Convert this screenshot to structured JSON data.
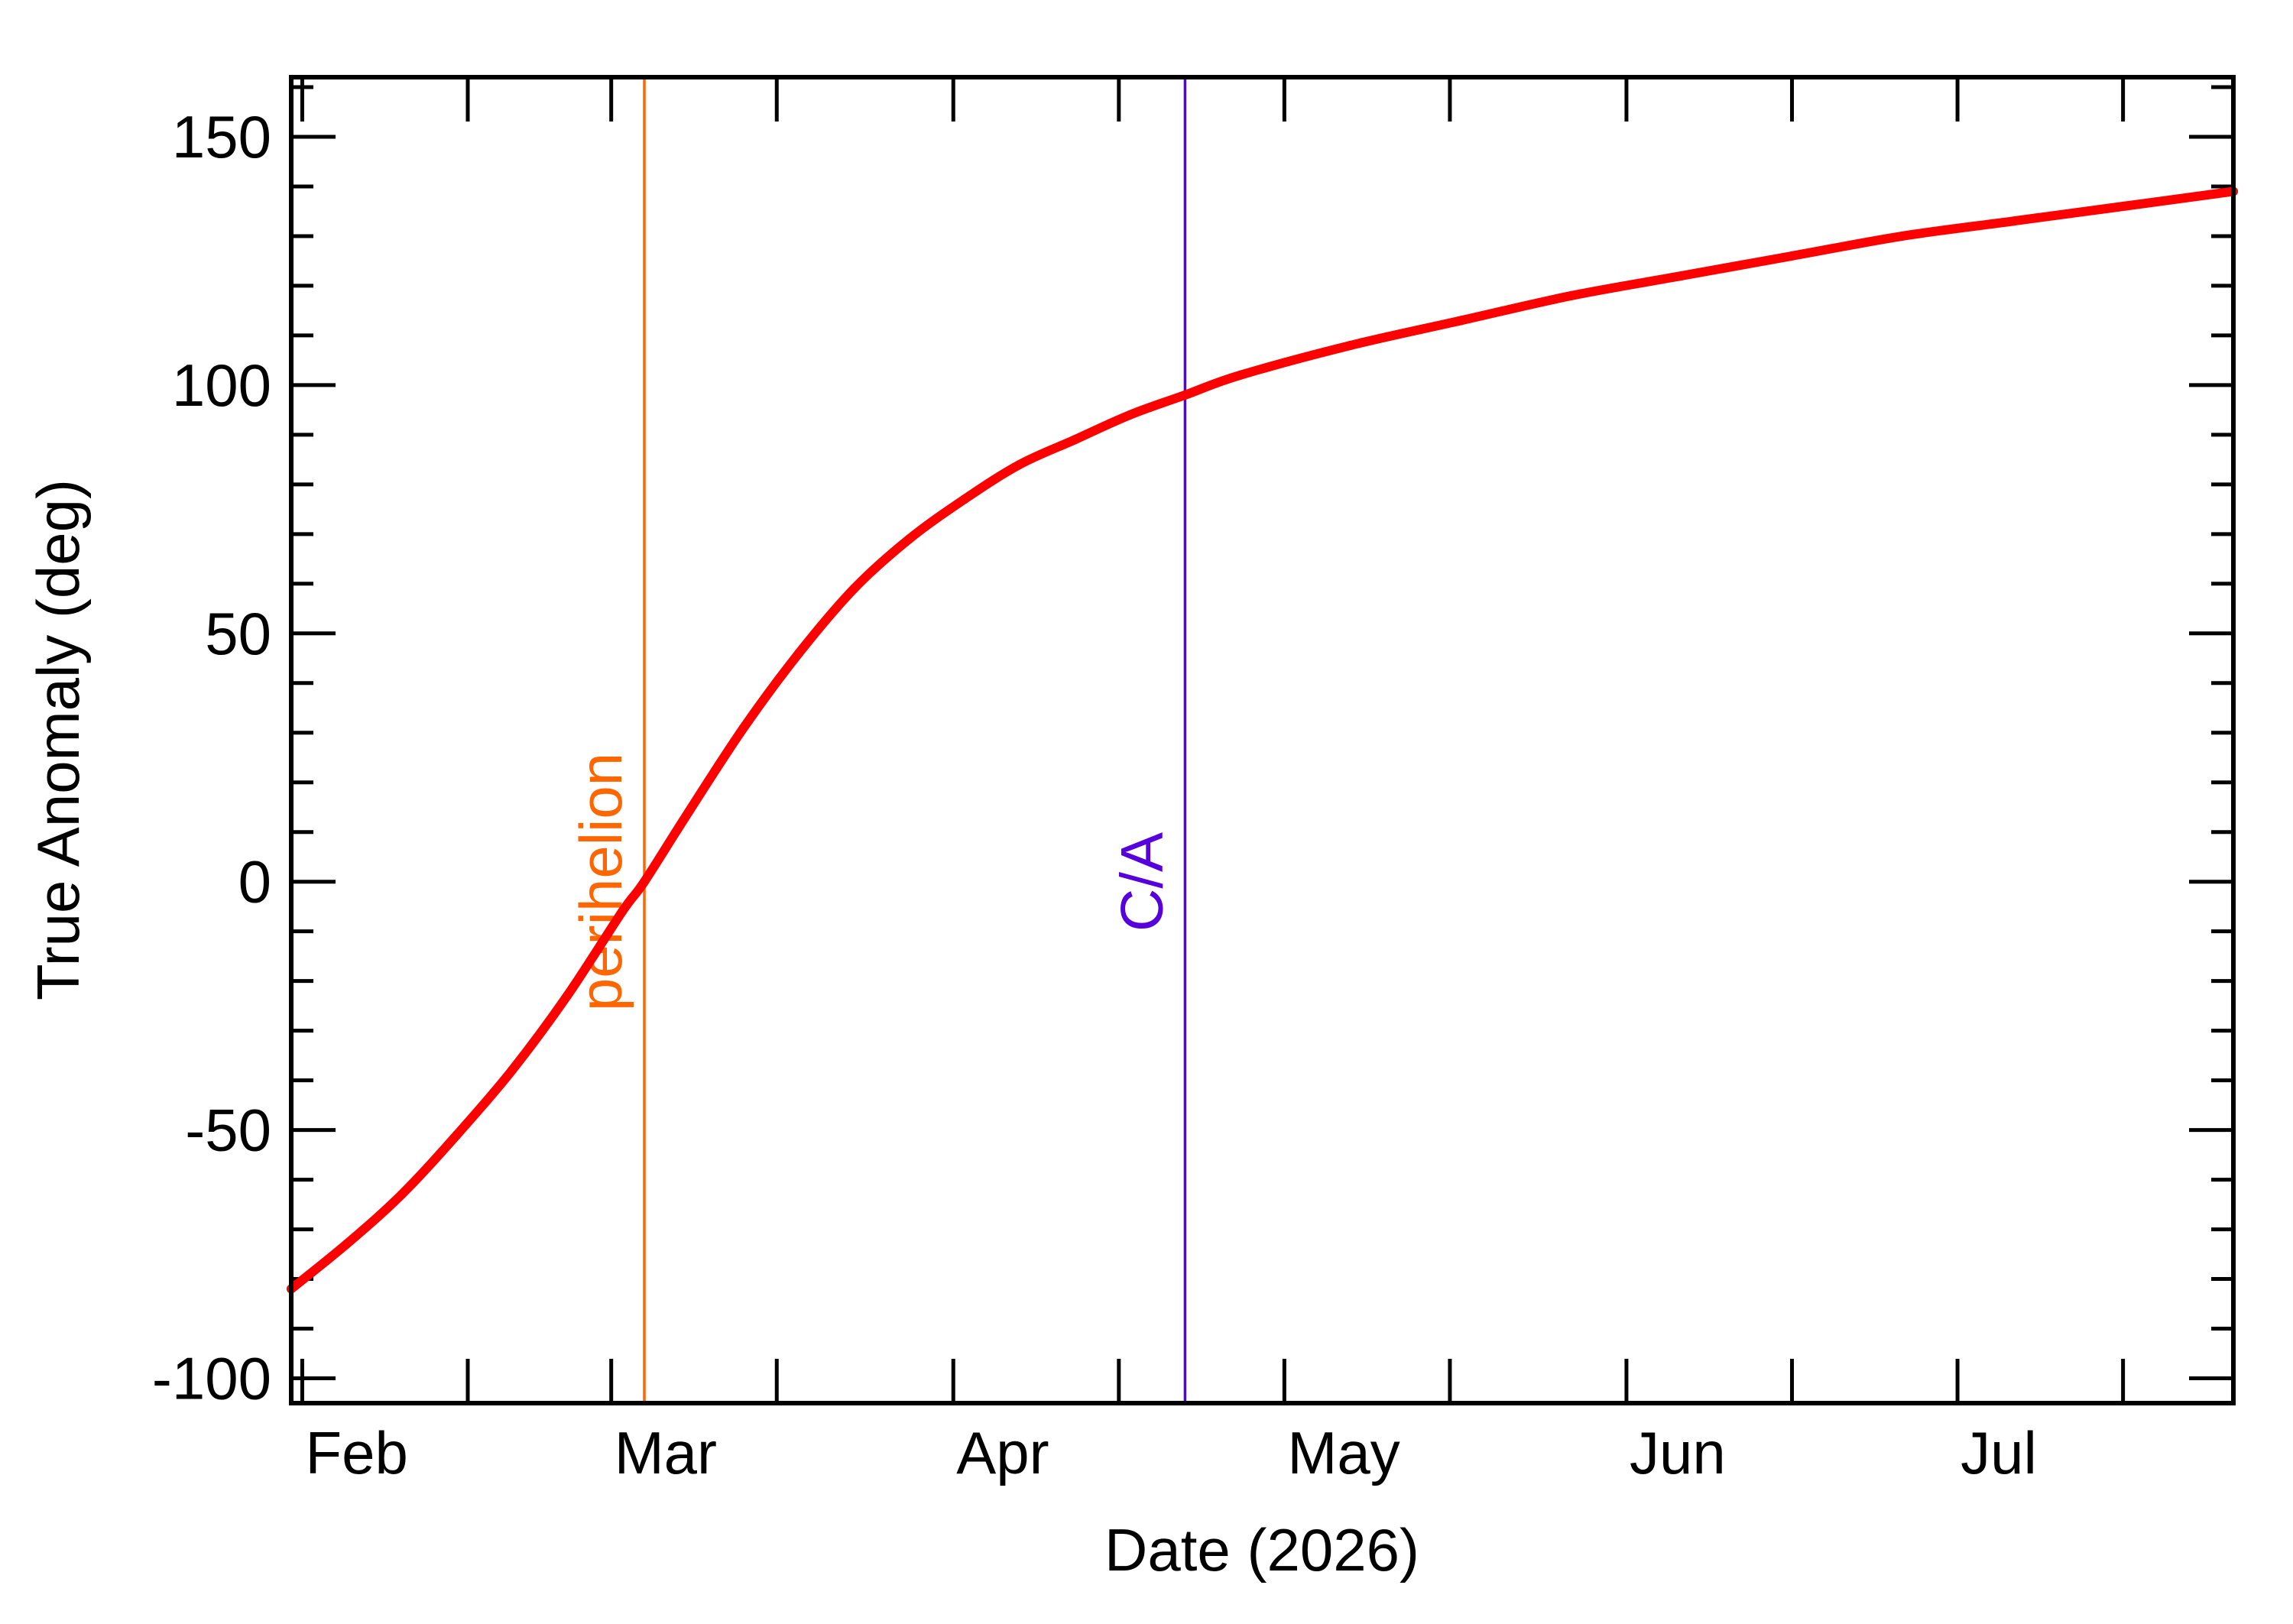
{
  "chart_data": {
    "type": "line",
    "title": "",
    "xlabel": "Date (2026)",
    "ylabel": "True Anomaly (deg)",
    "xlim": [
      "2026-01-31",
      "2026-07-26"
    ],
    "ylim": [
      -105,
      162
    ],
    "x_ticks": [
      {
        "date": "2026-02-01",
        "label": "Feb"
      },
      {
        "date": "2026-03-01",
        "label": "Mar"
      },
      {
        "date": "2026-04-01",
        "label": "Apr"
      },
      {
        "date": "2026-05-01",
        "label": "May"
      },
      {
        "date": "2026-06-01",
        "label": "Jun"
      },
      {
        "date": "2026-07-01",
        "label": "Jul"
      }
    ],
    "y_ticks": [
      -100,
      -50,
      0,
      50,
      100,
      150
    ],
    "y_tick_labels": [
      "-100",
      "-50",
      "0",
      "50",
      "100",
      "150"
    ],
    "grid": false,
    "series": [
      {
        "color": "#ff0000",
        "points": [
          {
            "x": "2026-01-31",
            "y": -82
          },
          {
            "x": "2026-02-05",
            "y": -73
          },
          {
            "x": "2026-02-10",
            "y": -63
          },
          {
            "x": "2026-02-15",
            "y": -51
          },
          {
            "x": "2026-02-20",
            "y": -38
          },
          {
            "x": "2026-02-25",
            "y": -23
          },
          {
            "x": "2026-03-02",
            "y": -6
          },
          {
            "x": "2026-03-04",
            "y": 0
          },
          {
            "x": "2026-03-08",
            "y": 14
          },
          {
            "x": "2026-03-13",
            "y": 31
          },
          {
            "x": "2026-03-18",
            "y": 46
          },
          {
            "x": "2026-03-23",
            "y": 59
          },
          {
            "x": "2026-03-28",
            "y": 69
          },
          {
            "x": "2026-04-02",
            "y": 77
          },
          {
            "x": "2026-04-07",
            "y": 84
          },
          {
            "x": "2026-04-12",
            "y": 89
          },
          {
            "x": "2026-04-17",
            "y": 94
          },
          {
            "x": "2026-04-22",
            "y": 98
          },
          {
            "x": "2026-04-27",
            "y": 102
          },
          {
            "x": "2026-05-07",
            "y": 108
          },
          {
            "x": "2026-05-17",
            "y": 113
          },
          {
            "x": "2026-05-27",
            "y": 118
          },
          {
            "x": "2026-06-06",
            "y": 122
          },
          {
            "x": "2026-06-16",
            "y": 126
          },
          {
            "x": "2026-06-26",
            "y": 130
          },
          {
            "x": "2026-07-06",
            "y": 133
          },
          {
            "x": "2026-07-16",
            "y": 136
          },
          {
            "x": "2026-07-26",
            "y": 139
          }
        ]
      }
    ],
    "annotations": [
      {
        "date": "2026-03-04",
        "label": "perihelion",
        "color": "#ff6600"
      },
      {
        "date": "2026-04-22",
        "label": "C/A",
        "color": "#5500dd"
      }
    ]
  }
}
